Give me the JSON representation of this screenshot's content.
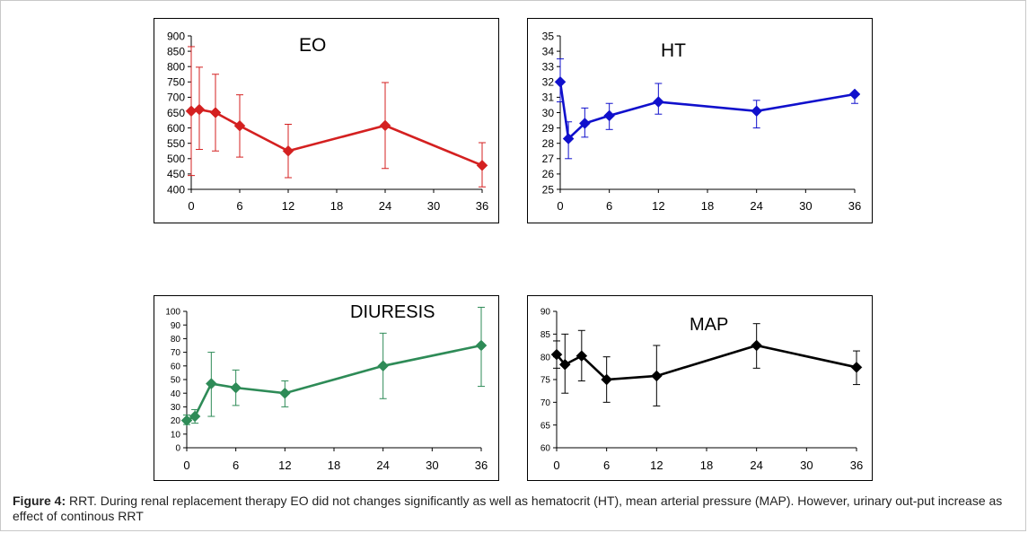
{
  "caption": {
    "label": "Figure 4:",
    "text": " RRT. During renal replacement therapy EO did not changes significantly as well as hematocrit (HT), mean arterial pressure (MAP). However, urinary out-put increase as effect of continous RRT"
  },
  "chart_data": [
    {
      "type": "line",
      "title": "EO",
      "color": "#d42020",
      "x": [
        0,
        1,
        3,
        6,
        12,
        24,
        36
      ],
      "y": [
        655,
        660,
        650,
        607,
        525,
        608,
        478
      ],
      "err_hi": [
        865,
        798,
        775,
        708,
        612,
        748,
        552
      ],
      "err_lo": [
        445,
        530,
        525,
        505,
        438,
        468,
        408
      ],
      "xlim": [
        0,
        36
      ],
      "xticks": [
        0,
        6,
        12,
        18,
        24,
        30,
        36
      ],
      "ylim": [
        400,
        900
      ],
      "yticks": [
        400,
        450,
        500,
        550,
        600,
        650,
        700,
        750,
        800,
        850,
        900
      ]
    },
    {
      "type": "line",
      "title": "HT",
      "color": "#1010cc",
      "x": [
        0,
        1,
        3,
        6,
        12,
        24,
        36
      ],
      "y": [
        32.0,
        28.3,
        29.3,
        29.8,
        30.7,
        30.1,
        31.2
      ],
      "err_hi": [
        33.5,
        29.4,
        30.3,
        30.6,
        31.9,
        30.8,
        31.2
      ],
      "err_lo": [
        30.7,
        27.0,
        28.4,
        28.9,
        29.9,
        29.0,
        30.6
      ],
      "xlim": [
        0,
        36
      ],
      "xticks": [
        0,
        6,
        12,
        18,
        24,
        30,
        36
      ],
      "ylim": [
        25,
        35
      ],
      "yticks": [
        25,
        26,
        27,
        28,
        29,
        30,
        31,
        32,
        33,
        34,
        35
      ]
    },
    {
      "type": "line",
      "title": "DIURESIS",
      "color": "#2e8b57",
      "x": [
        0,
        1,
        3,
        6,
        12,
        24,
        36
      ],
      "y": [
        20,
        23,
        47,
        44,
        40,
        60,
        75
      ],
      "err_hi": [
        24,
        28,
        70,
        57,
        49,
        84,
        103
      ],
      "err_lo": [
        17,
        18,
        23,
        31,
        30,
        36,
        45
      ],
      "xlim": [
        0,
        36
      ],
      "xticks": [
        0,
        6,
        12,
        18,
        24,
        30,
        36
      ],
      "ylim": [
        0,
        100
      ],
      "yticks": [
        0,
        10,
        20,
        30,
        40,
        50,
        60,
        70,
        80,
        90,
        100
      ]
    },
    {
      "type": "line",
      "title": "MAP",
      "color": "#000000",
      "x": [
        0,
        1,
        3,
        6,
        12,
        24,
        36
      ],
      "y": [
        80.5,
        78.3,
        80.2,
        75.0,
        75.8,
        82.5,
        77.7
      ],
      "err_hi": [
        83.5,
        85.0,
        85.8,
        80.0,
        82.5,
        87.3,
        81.3
      ],
      "err_lo": [
        77.5,
        72.0,
        74.7,
        70.0,
        69.2,
        77.5,
        73.9
      ],
      "xlim": [
        0,
        36
      ],
      "xticks": [
        0,
        6,
        12,
        18,
        24,
        30,
        36
      ],
      "ylim": [
        60,
        90
      ],
      "yticks": [
        60,
        65,
        70,
        75,
        80,
        85,
        90
      ]
    }
  ]
}
